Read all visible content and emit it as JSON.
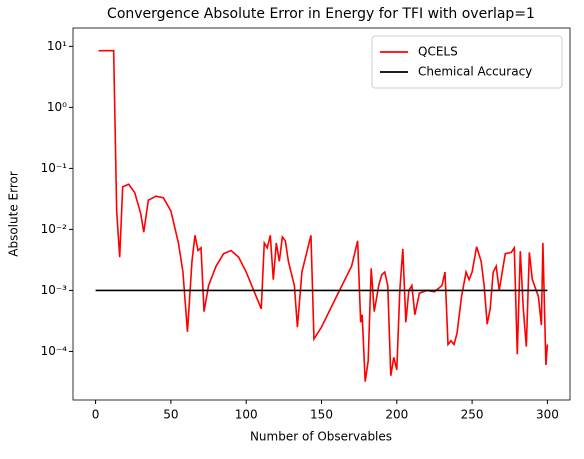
{
  "chart_data": {
    "type": "line",
    "title": "Convergence Absolute Error in Energy for TFI with overlap=1",
    "xlabel": "Number of Observables",
    "ylabel": "Absolute Error",
    "log_y": true,
    "legend": "upper right",
    "xlim": [
      -15,
      315
    ],
    "xticks": [
      0,
      50,
      100,
      150,
      200,
      250,
      300
    ],
    "ylim": [
      1.6e-05,
      20
    ],
    "yticks": [
      {
        "value": 0.0001,
        "label": "10⁻⁴"
      },
      {
        "value": 0.001,
        "label": "10⁻³"
      },
      {
        "value": 0.01,
        "label": "10⁻²"
      },
      {
        "value": 0.1,
        "label": "10⁻¹"
      },
      {
        "value": 1,
        "label": "10⁰"
      },
      {
        "value": 10,
        "label": "10¹"
      }
    ],
    "series": [
      {
        "name": "QCELS",
        "color": "#ff0000",
        "x": [
          2,
          12,
          14,
          16,
          18,
          22,
          26,
          30,
          32,
          35,
          40,
          45,
          50,
          55,
          58,
          61,
          64,
          66,
          68,
          70,
          72,
          75,
          80,
          85,
          90,
          95,
          100,
          105,
          110,
          112,
          114,
          116,
          118,
          120,
          122,
          124,
          126,
          128,
          132,
          134,
          137,
          140,
          143,
          145,
          150,
          160,
          170,
          174,
          176,
          177,
          179,
          181,
          183,
          185,
          188,
          190,
          192,
          194,
          196,
          198,
          200,
          202,
          204,
          206,
          208,
          210,
          212,
          215,
          220,
          225,
          230,
          232,
          234,
          236,
          238,
          240,
          243,
          246,
          248,
          250,
          253,
          256,
          258,
          260,
          262,
          264,
          266,
          268,
          270,
          272,
          276,
          278,
          280,
          282,
          284,
          286,
          288,
          290,
          294,
          296,
          297,
          299,
          300
        ],
        "values": [
          8.5,
          8.5,
          0.02,
          0.0035,
          0.05,
          0.055,
          0.04,
          0.018,
          0.009,
          0.03,
          0.035,
          0.033,
          0.02,
          0.006,
          0.002,
          0.00021,
          0.003,
          0.008,
          0.0045,
          0.005,
          0.00045,
          0.0012,
          0.0025,
          0.004,
          0.0045,
          0.0035,
          0.002,
          0.001,
          0.0005,
          0.006,
          0.005,
          0.008,
          0.0015,
          0.006,
          0.003,
          0.0075,
          0.0065,
          0.003,
          0.0012,
          0.00025,
          0.002,
          0.004,
          0.008,
          0.00016,
          0.00025,
          0.0008,
          0.0025,
          0.0065,
          0.0003,
          0.0004,
          3.2e-05,
          7e-05,
          0.0023,
          0.00045,
          0.0012,
          0.0018,
          0.002,
          0.0012,
          4e-05,
          8e-05,
          5e-05,
          0.001,
          0.0048,
          0.0003,
          0.001,
          0.0012,
          0.0004,
          0.0009,
          0.001,
          0.00095,
          0.0012,
          0.002,
          0.00013,
          0.00015,
          0.00013,
          0.0002,
          0.0008,
          0.002,
          0.0015,
          0.002,
          0.0052,
          0.003,
          0.0012,
          0.00028,
          0.0005,
          0.002,
          0.0025,
          0.001,
          0.002,
          0.004,
          0.0042,
          0.005,
          9e-05,
          0.0044,
          0.0005,
          0.00012,
          0.0042,
          0.0015,
          0.0008,
          0.00027,
          0.006,
          6e-05,
          0.00013
        ]
      },
      {
        "name": "Chemical Accuracy",
        "color": "#000000",
        "x": [
          0,
          300
        ],
        "values": [
          0.001,
          0.001
        ]
      }
    ]
  }
}
